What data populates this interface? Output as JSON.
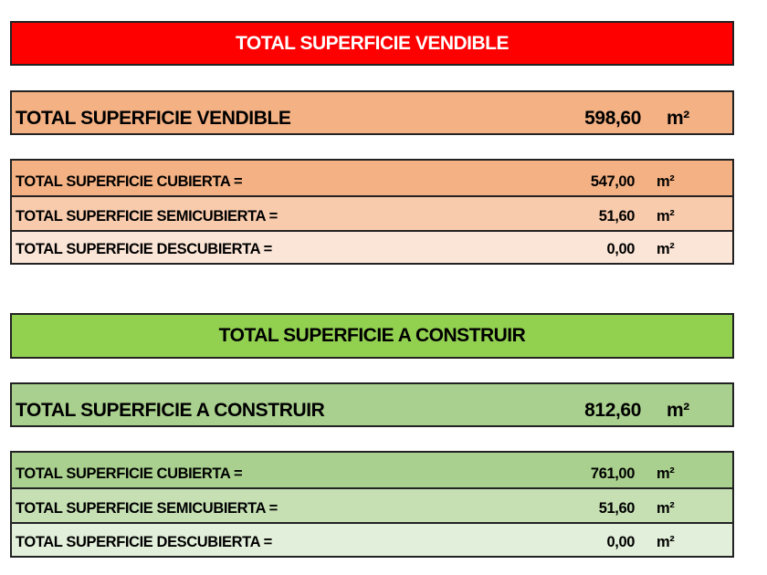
{
  "colors": {
    "vendible_header": "#ff0000",
    "vendible_total": "#f4b183",
    "vendible_cubierta": "#f4b183",
    "vendible_semicubierta": "#f8cbad",
    "vendible_descubierta": "#fbe5d6",
    "construir_header": "#92d050",
    "construir_total": "#a9d08e",
    "construir_cubierta": "#a9d08e",
    "construir_semicubierta": "#c6e0b4",
    "construir_descubierta": "#e2efda"
  },
  "vendible": {
    "header": "TOTAL SUPERFICIE VENDIBLE",
    "total": {
      "label": "TOTAL SUPERFICIE VENDIBLE",
      "value": "598,60",
      "unit": "m²"
    },
    "rows": [
      {
        "label": "TOTAL SUPERFICIE CUBIERTA =",
        "value": "547,00",
        "unit": "m²"
      },
      {
        "label": "TOTAL SUPERFICIE SEMICUBIERTA =",
        "value": "51,60",
        "unit": "m²"
      },
      {
        "label": "TOTAL SUPERFICIE DESCUBIERTA =",
        "value": "0,00",
        "unit": "m²"
      }
    ]
  },
  "construir": {
    "header": "TOTAL SUPERFICIE A CONSTRUIR",
    "total": {
      "label": "TOTAL SUPERFICIE A CONSTRUIR",
      "value": "812,60",
      "unit": "m²"
    },
    "rows": [
      {
        "label": "TOTAL SUPERFICIE CUBIERTA =",
        "value": "761,00",
        "unit": "m²"
      },
      {
        "label": "TOTAL SUPERFICIE SEMICUBIERTA =",
        "value": "51,60",
        "unit": "m²"
      },
      {
        "label": "TOTAL SUPERFICIE DESCUBIERTA =",
        "value": "0,00",
        "unit": "m²"
      }
    ]
  }
}
